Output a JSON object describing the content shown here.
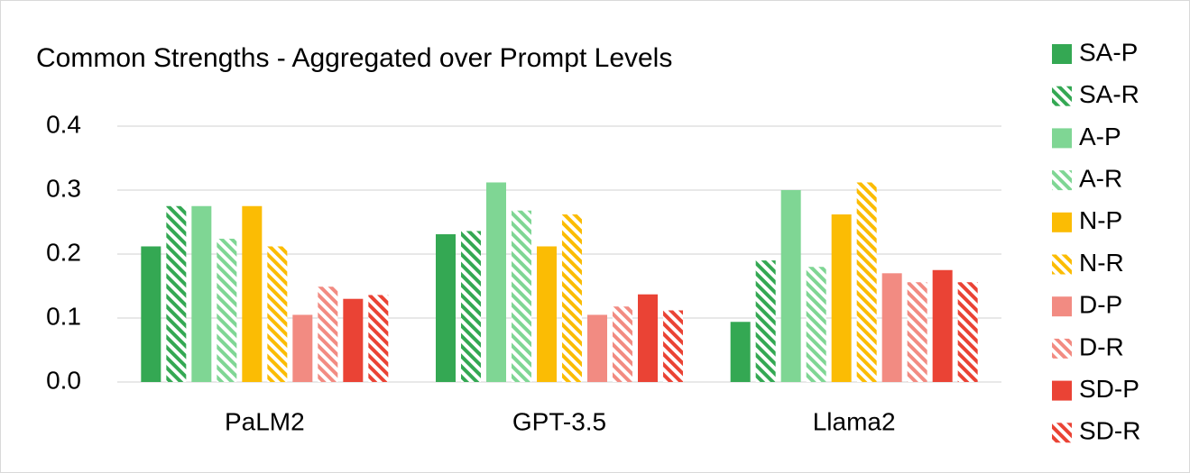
{
  "chart_data": {
    "type": "bar",
    "title": "Common Strengths - Aggregated over Prompt Levels",
    "categories": [
      "PaLM2",
      "GPT-3.5",
      "Llama2"
    ],
    "ylim": [
      0,
      0.4
    ],
    "yticks": [
      {
        "value": 0,
        "label": "0.0"
      },
      0.1,
      0.2,
      0.3,
      0.4
    ],
    "grid": true,
    "legend": "right",
    "series": [
      {
        "name": "SA-P",
        "color": "#34a853",
        "hatch": false,
        "values": [
          0.212,
          0.231,
          0.094
        ]
      },
      {
        "name": "SA-R",
        "color": "#34a853",
        "hatch": true,
        "values": [
          0.275,
          0.236,
          0.19
        ]
      },
      {
        "name": "A-P",
        "color": "#7fd694",
        "hatch": false,
        "values": [
          0.275,
          0.312,
          0.3
        ]
      },
      {
        "name": "A-R",
        "color": "#7fd694",
        "hatch": true,
        "values": [
          0.224,
          0.268,
          0.18
        ]
      },
      {
        "name": "N-P",
        "color": "#fbbc04",
        "hatch": false,
        "values": [
          0.275,
          0.212,
          0.262
        ]
      },
      {
        "name": "N-R",
        "color": "#fbbc04",
        "hatch": true,
        "values": [
          0.212,
          0.262,
          0.312
        ]
      },
      {
        "name": "D-P",
        "color": "#f28b82",
        "hatch": false,
        "values": [
          0.105,
          0.105,
          0.17
        ]
      },
      {
        "name": "D-R",
        "color": "#f28b82",
        "hatch": true,
        "values": [
          0.149,
          0.118,
          0.156
        ]
      },
      {
        "name": "SD-P",
        "color": "#ea4335",
        "hatch": false,
        "values": [
          0.13,
          0.137,
          0.175
        ]
      },
      {
        "name": "SD-R",
        "color": "#ea4335",
        "hatch": true,
        "values": [
          0.136,
          0.112,
          0.156
        ]
      }
    ]
  }
}
